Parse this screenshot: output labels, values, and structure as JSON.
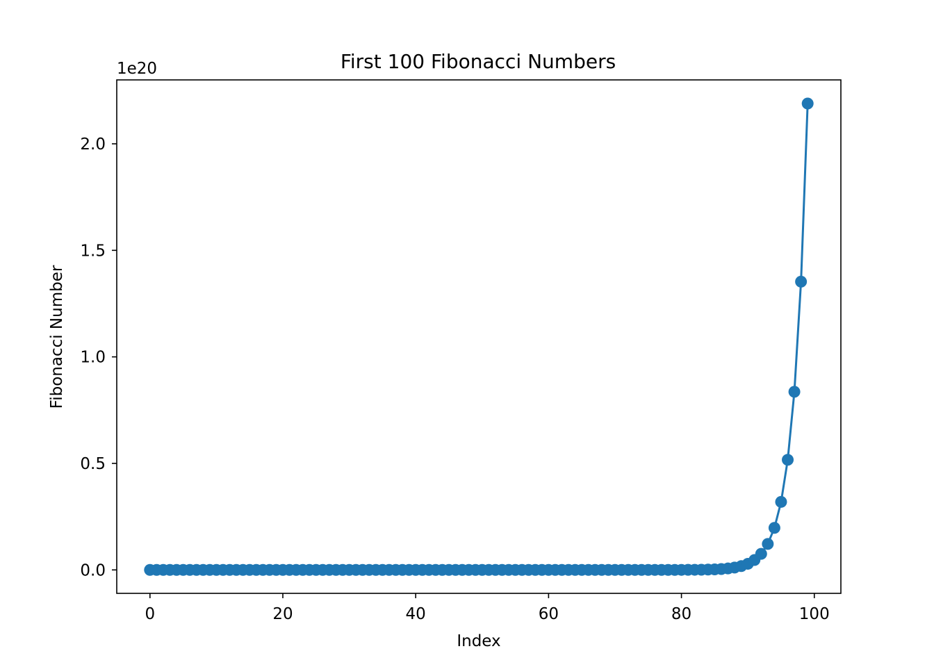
{
  "chart_data": {
    "type": "line",
    "title": "First 100 Fibonacci Numbers",
    "xlabel": "Index",
    "ylabel": "Fibonacci Number",
    "y_offset_label": "1e20",
    "y_scale_factor": 1e+20,
    "xlim": [
      -5,
      104
    ],
    "ylim": [
      -1.1e+19,
      2.3e+20
    ],
    "x_ticks": [
      0,
      20,
      40,
      60,
      80,
      100
    ],
    "x_tick_labels": [
      "0",
      "20",
      "40",
      "60",
      "80",
      "100"
    ],
    "y_ticks": [
      0,
      5e+19,
      1e+20,
      1.5e+20,
      2e+20
    ],
    "y_tick_labels": [
      "0.0",
      "0.5",
      "1.0",
      "1.5",
      "2.0"
    ],
    "grid": false,
    "legend": null,
    "color": "#1f77b4",
    "marker": "circle",
    "series": [
      {
        "x": [
          0,
          1,
          2,
          3,
          4,
          5,
          6,
          7,
          8,
          9,
          10,
          11,
          12,
          13,
          14,
          15,
          16,
          17,
          18,
          19,
          20,
          21,
          22,
          23,
          24,
          25,
          26,
          27,
          28,
          29,
          30,
          31,
          32,
          33,
          34,
          35,
          36,
          37,
          38,
          39,
          40,
          41,
          42,
          43,
          44,
          45,
          46,
          47,
          48,
          49,
          50,
          51,
          52,
          53,
          54,
          55,
          56,
          57,
          58,
          59,
          60,
          61,
          62,
          63,
          64,
          65,
          66,
          67,
          68,
          69,
          70,
          71,
          72,
          73,
          74,
          75,
          76,
          77,
          78,
          79,
          80,
          81,
          82,
          83,
          84,
          85,
          86,
          87,
          88,
          89,
          90,
          91,
          92,
          93,
          94,
          95,
          96,
          97,
          98,
          99
        ],
        "y": [
          0,
          1,
          1,
          2,
          3,
          5,
          8,
          13,
          21,
          34,
          55,
          89,
          144,
          233,
          377,
          610,
          987,
          1597,
          2584,
          4181,
          6765,
          10946,
          17711,
          28657,
          46368,
          75025,
          121393,
          196418,
          317811,
          514229,
          832040,
          1346269,
          2178309,
          3524578,
          5702887,
          9227465,
          14930352,
          24157817,
          39088169,
          63245986,
          102334155,
          165580141,
          267914296,
          433494437,
          701408733,
          1134903170,
          1836311903,
          2971215073,
          4807526976,
          7778742049,
          12586269025,
          20365011074,
          32951280099,
          53316291173,
          86267571272,
          139583862445,
          225851433717,
          365435296162,
          591286729879,
          956722026041,
          1548008755920,
          2504730781961,
          4052739537881,
          6557470319842,
          10610209857723,
          17167680177565,
          27777890035288,
          44945570212853,
          72723460248141,
          117669030460994,
          190392490709135,
          308061521170129,
          498454011879264,
          806515533049393,
          1304969544928657,
          2111485077978050,
          3416454622906707,
          5527939700884757,
          8944394323791464,
          14472334024676221,
          23416728348467685,
          37889062373143906,
          61305790721611591,
          99194853094755497,
          160500643816367088,
          259695496911122585,
          420196140727489673,
          679891637638612258,
          1100087778366101931,
          1779979416004714189,
          2880067194370816120,
          4660046610375530309,
          7540113804746346429,
          12200160415121876738,
          19740274219868223167,
          31940434634990099905,
          51680708854858323072,
          83621143489848422977,
          135301852344706746049,
          218922995834555169026
        ]
      }
    ]
  }
}
